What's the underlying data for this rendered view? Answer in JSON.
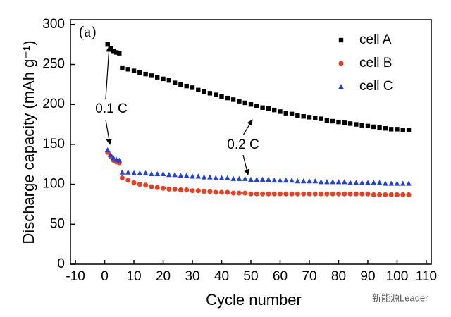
{
  "chart_data": {
    "type": "scatter",
    "xlabel": "Cycle number",
    "ylabel": "Discharge capacity (mAh g⁻¹)",
    "panel_label": "(a)",
    "annotations": [
      "0.1 C",
      "0.2 C"
    ],
    "watermark": "新能源Leader",
    "legend_position": "upper right",
    "xlim": [
      -11.7,
      111.7
    ],
    "xticks": [
      -10,
      0,
      10,
      20,
      30,
      40,
      50,
      60,
      70,
      80,
      90,
      100,
      110
    ],
    "ylim": [
      0,
      306
    ],
    "yticks": [
      0,
      50,
      100,
      150,
      200,
      250,
      300
    ],
    "x": [
      1,
      2,
      3,
      4,
      5,
      6,
      8,
      10,
      12,
      14,
      16,
      18,
      20,
      22,
      24,
      26,
      28,
      30,
      32,
      34,
      36,
      38,
      40,
      42,
      44,
      46,
      48,
      50,
      52,
      54,
      56,
      58,
      60,
      62,
      64,
      66,
      68,
      70,
      72,
      74,
      76,
      78,
      80,
      82,
      84,
      86,
      88,
      90,
      92,
      94,
      96,
      98,
      100,
      102,
      104
    ],
    "series": [
      {
        "name": "cell A",
        "color": "#000000",
        "marker": "square",
        "values": [
          275,
          270,
          267,
          265,
          264,
          246,
          244,
          242,
          240,
          238,
          236,
          234,
          232,
          230,
          227,
          225,
          223,
          221,
          218,
          216,
          214,
          212,
          210,
          208,
          206,
          204,
          202,
          200,
          198,
          196,
          195,
          193,
          191,
          189,
          188,
          186,
          185,
          184,
          183,
          182,
          180,
          179,
          178,
          177,
          176,
          175,
          174,
          173,
          172,
          171,
          170,
          169,
          169,
          168,
          168
        ]
      },
      {
        "name": "cell B",
        "color": "#f03c1e",
        "marker": "circle",
        "values": [
          140,
          135,
          130,
          128,
          127,
          108,
          105,
          102,
          100,
          99,
          97,
          96,
          95,
          94,
          94,
          93,
          93,
          92,
          92,
          91,
          91,
          90,
          90,
          90,
          89,
          89,
          89,
          88,
          88,
          88,
          88,
          88,
          88,
          88,
          88,
          88,
          88,
          88,
          88,
          88,
          88,
          88,
          88,
          88,
          88,
          88,
          88,
          88,
          87,
          87,
          87,
          87,
          87,
          87,
          87
        ]
      },
      {
        "name": "cell C",
        "color": "#1f3fe0",
        "marker": "triangle",
        "values": [
          143,
          137,
          133,
          131,
          130,
          115,
          115,
          114,
          114,
          114,
          113,
          113,
          113,
          112,
          112,
          111,
          111,
          110,
          110,
          109,
          109,
          108,
          108,
          108,
          107,
          107,
          107,
          106,
          106,
          106,
          106,
          105,
          105,
          105,
          105,
          104,
          104,
          104,
          104,
          103,
          103,
          103,
          103,
          103,
          102,
          102,
          102,
          102,
          102,
          102,
          101,
          101,
          101,
          101,
          101
        ]
      }
    ]
  }
}
